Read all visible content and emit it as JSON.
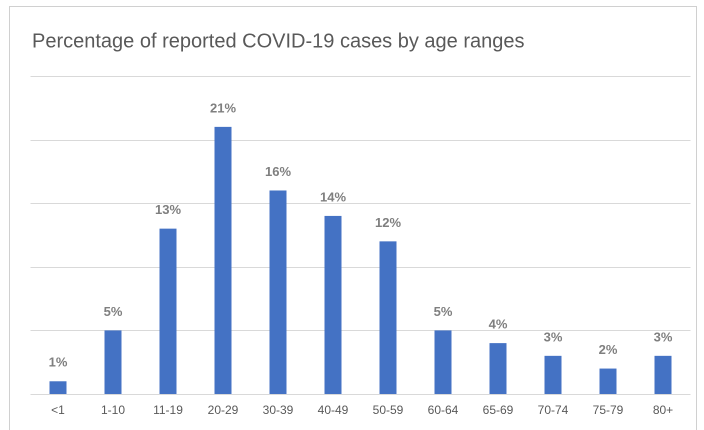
{
  "chart_data": {
    "type": "bar",
    "title": "Percentage of reported COVID-19 cases by age ranges",
    "categories": [
      "<1",
      "1-10",
      "11-19",
      "20-29",
      "30-39",
      "40-49",
      "50-59",
      "60-64",
      "65-69",
      "70-74",
      "75-79",
      "80+"
    ],
    "values": [
      1,
      5,
      13,
      21,
      16,
      14,
      12,
      5,
      4,
      3,
      2,
      3
    ],
    "value_labels": [
      "1%",
      "5%",
      "13%",
      "21%",
      "16%",
      "14%",
      "12%",
      "5%",
      "4%",
      "3%",
      "2%",
      "3%"
    ],
    "color": "#4472c4",
    "ylim": [
      0,
      25
    ],
    "yticks": [
      0,
      5,
      10,
      15,
      20,
      25
    ],
    "grid": true
  }
}
